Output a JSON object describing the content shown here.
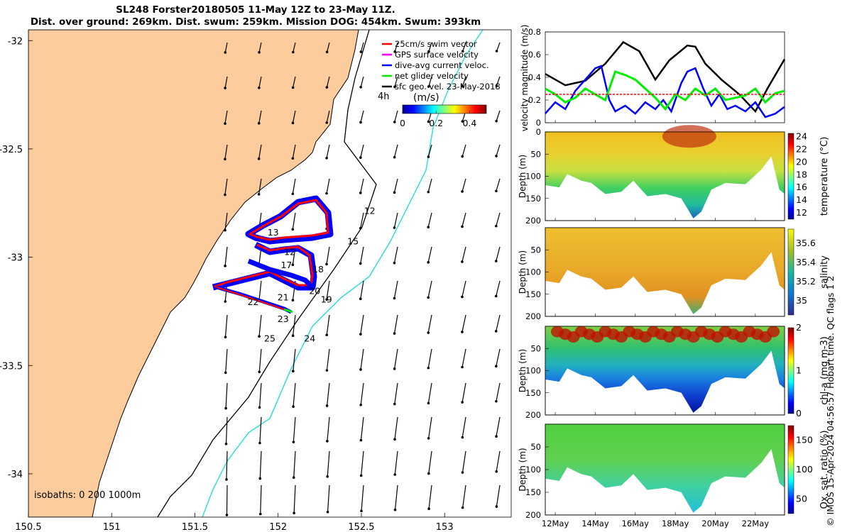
{
  "title_line1": "SL248 Forster20180505 11-May 12Z to 23-May 11Z.",
  "title_line2": "Dist. over ground: 269km. Dist. swum: 259km. Mission DOG: 454km. Swum: 393km",
  "credit": "© IMOS 15-Apr-2024 04:56:57 Hobart time. QC flags 1 2",
  "colors": {
    "land": "#fccc9c",
    "track_red": "#ff0000",
    "track_blue": "#0000ff",
    "glider_green": "#00ee00",
    "isobath_200": "#000000",
    "isobath_1000": "#33dddd"
  },
  "chart_data": [
    {
      "type": "map",
      "xlim": [
        150.5,
        153.4
      ],
      "ylim": [
        -34.2,
        -31.95
      ],
      "xticks": [
        150.5,
        151,
        151.5,
        152,
        152.5,
        153
      ],
      "yticks": [
        -32,
        -32.5,
        -33,
        -33.5,
        -34
      ],
      "xtick_labels": [
        "150.5",
        "151",
        "151.5",
        "152",
        "152.5",
        "153"
      ],
      "ytick_labels": [
        "-32",
        "-32.5",
        "-33",
        "-33.5",
        "-34"
      ],
      "legend": [
        {
          "label": "25cm/s swim vector",
          "color": "#ff0000"
        },
        {
          "label": "GPS surface velocity",
          "color": "#ff00ff"
        },
        {
          "label": "dive-avg current veloc.",
          "color": "#0000ff"
        },
        {
          "label": "net glider velocity",
          "color": "#00ee00"
        },
        {
          "label": "sfc geo. vel. 23-May-2018",
          "color": "#000000"
        }
      ],
      "arrow_scale_label": "4h",
      "colorbar": {
        "label": "(m/s)",
        "ticks": [
          0,
          0.2,
          0.4
        ],
        "tick_labels": [
          "0",
          "0.2",
          "0.4"
        ],
        "range": [
          0,
          0.5
        ]
      },
      "isobath_label": "isobaths: 0   200  1000m",
      "day_labels": [
        {
          "day": "12",
          "lon": 152.55,
          "lat": -32.8
        },
        {
          "day": "13",
          "lon": 151.97,
          "lat": -32.9
        },
        {
          "day": "15",
          "lon": 152.45,
          "lat": -32.94
        },
        {
          "day": "12",
          "lon": 152.07,
          "lat": -32.99
        },
        {
          "day": "17",
          "lon": 152.05,
          "lat": -33.05
        },
        {
          "day": "18",
          "lon": 152.24,
          "lat": -33.07
        },
        {
          "day": "20",
          "lon": 152.22,
          "lat": -33.17
        },
        {
          "day": "21",
          "lon": 152.03,
          "lat": -33.2
        },
        {
          "day": "22",
          "lon": 151.85,
          "lat": -33.22
        },
        {
          "day": "19",
          "lon": 152.29,
          "lat": -33.21
        },
        {
          "day": "23",
          "lon": 152.03,
          "lat": -33.3
        },
        {
          "day": "24",
          "lon": 152.19,
          "lat": -33.39
        },
        {
          "day": "25",
          "lon": 151.95,
          "lat": -33.39
        }
      ]
    },
    {
      "type": "line",
      "ylabel": "velocity magnitude (m/s)",
      "ylim": [
        0,
        0.8
      ],
      "yticks": [
        0,
        0.2,
        0.4,
        0.6,
        0.8
      ],
      "x_range_days": [
        11.5,
        23.46
      ],
      "series": [
        {
          "color": "#000000",
          "x": [
            11.5,
            12.5,
            13.5,
            14.5,
            15.4,
            16.2,
            17.0,
            17.7,
            18.6,
            19.0,
            19.5,
            20.3,
            21.2,
            22.0,
            22.6,
            23.46
          ],
          "values": [
            0.43,
            0.33,
            0.37,
            0.52,
            0.71,
            0.63,
            0.38,
            0.55,
            0.68,
            0.67,
            0.52,
            0.38,
            0.25,
            0.1,
            0.3,
            0.56
          ]
        },
        {
          "color": "#0000ff",
          "x": [
            11.5,
            12.0,
            12.5,
            13.0,
            13.5,
            14.0,
            14.3,
            14.7,
            15.0,
            15.5,
            16.0,
            16.5,
            17.0,
            17.4,
            17.8,
            18.3,
            18.6,
            19.0,
            19.4,
            19.8,
            20.2,
            20.6,
            21.0,
            21.5,
            22.0,
            22.5,
            23.0,
            23.46
          ],
          "values": [
            0.08,
            0.18,
            0.12,
            0.28,
            0.38,
            0.48,
            0.5,
            0.2,
            0.1,
            0.15,
            0.08,
            0.18,
            0.12,
            0.2,
            0.1,
            0.35,
            0.45,
            0.48,
            0.3,
            0.15,
            0.25,
            0.12,
            0.15,
            0.1,
            0.18,
            0.05,
            0.08,
            0.14
          ]
        },
        {
          "color": "#00ee00",
          "x": [
            11.5,
            12.0,
            12.5,
            13.0,
            13.5,
            14.0,
            14.5,
            15.0,
            15.5,
            16.0,
            16.5,
            17.0,
            17.5,
            18.0,
            18.5,
            19.0,
            19.5,
            20.0,
            20.5,
            21.0,
            21.5,
            22.0,
            22.5,
            23.0,
            23.46
          ],
          "values": [
            0.3,
            0.25,
            0.18,
            0.22,
            0.3,
            0.25,
            0.2,
            0.45,
            0.42,
            0.38,
            0.3,
            0.22,
            0.12,
            0.25,
            0.2,
            0.3,
            0.24,
            0.3,
            0.2,
            0.22,
            0.24,
            0.3,
            0.18,
            0.26,
            0.28
          ]
        },
        {
          "color": "#ff0000",
          "x": [
            11.5,
            23.46
          ],
          "values": [
            0.25,
            0.25
          ]
        }
      ]
    },
    {
      "type": "heatmap",
      "ylabel": "Depth (m)",
      "clabel": "temperature (°C)",
      "ylim": [
        200,
        0
      ],
      "yticks": [
        0,
        50,
        100,
        150,
        200
      ],
      "cticks": [
        12,
        14,
        16,
        18,
        20,
        22,
        24
      ],
      "crange": [
        11,
        24.5
      ]
    },
    {
      "type": "heatmap",
      "ylabel": "Depth (m)",
      "clabel": "salinity",
      "ylim": [
        200,
        0
      ],
      "yticks": [
        50,
        100,
        150,
        200
      ],
      "cticks": [
        35,
        35.2,
        35.4,
        35.6
      ],
      "crange": [
        34.85,
        35.75
      ]
    },
    {
      "type": "heatmap",
      "ylabel": "Depth (m)",
      "clabel": "chl-a (mg m-3)",
      "ylim": [
        200,
        0
      ],
      "yticks": [
        50,
        100,
        150,
        200
      ],
      "cticks": [
        0,
        1,
        2
      ],
      "crange": [
        0,
        2
      ]
    },
    {
      "type": "heatmap",
      "ylabel": "Depth (m)",
      "clabel": "Ox. sat. ratio (%)",
      "ylim": [
        200,
        0
      ],
      "yticks": [
        50,
        100,
        150,
        200
      ],
      "cticks": [
        50,
        100,
        150
      ],
      "crange": [
        25,
        175
      ],
      "xtick_labels": [
        "12May",
        "14May",
        "16May",
        "18May",
        "20May",
        "22May"
      ],
      "xticks_days": [
        12,
        14,
        16,
        18,
        20,
        22
      ]
    }
  ]
}
